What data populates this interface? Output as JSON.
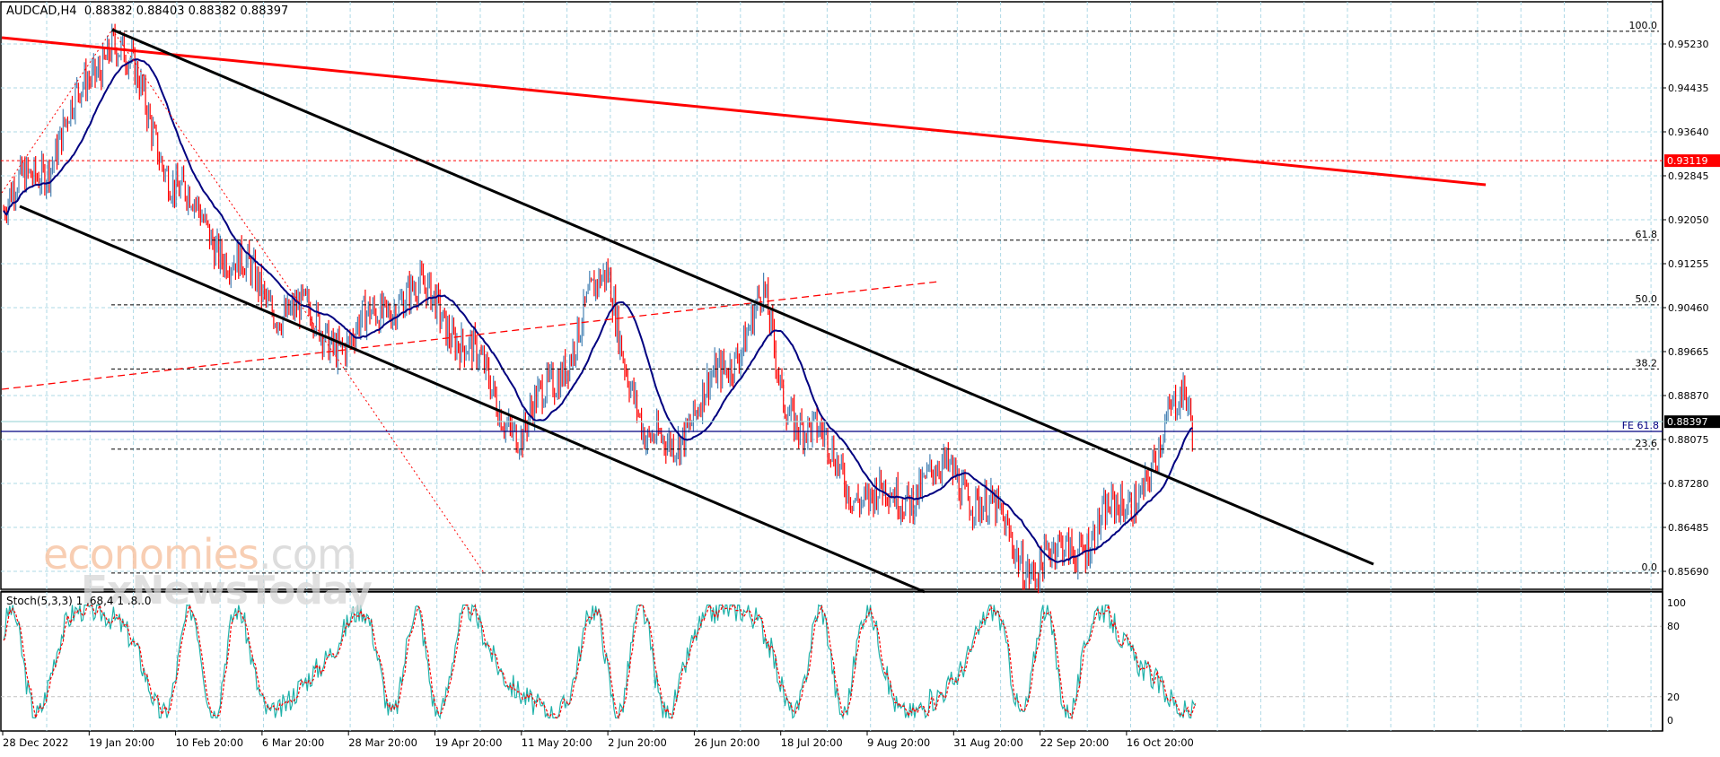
{
  "header": {
    "symbol": "AUDCAD",
    "timeframe": "H4",
    "title": "AUDCAD,H4  0.88382 0.88403 0.88382 0.88397",
    "open": "0.88382",
    "high": "0.88403",
    "low": "0.88382",
    "close": "0.88397"
  },
  "watermark": {
    "line1_main": "economies",
    "line1_suffix": ".com",
    "line2": "FxNewsToday"
  },
  "indicator": {
    "label": "Stoch(5,3,3) 1 .68,4 1 .8..0",
    "levels": [
      "100",
      "80",
      "20",
      "0"
    ]
  },
  "colors": {
    "bull_candle": "#4682b4",
    "bear_candle": "#ff0000",
    "moving_average": "#000080",
    "channel": "#000000",
    "trendline_red": "#ff0000",
    "grid": "#add8e6",
    "stoch_main": "#20b2aa",
    "stoch_signal": "#ff0000",
    "current_price_bg": "#000000",
    "marker_price_bg": "#ff0000"
  },
  "price_axis": {
    "labels": [
      "0.95230",
      "0.94435",
      "0.93640",
      "0.92845",
      "0.92050",
      "0.91255",
      "0.90460",
      "0.89665",
      "0.88870",
      "0.88075",
      "0.87280",
      "0.86485",
      "0.85690"
    ],
    "current_price": "0.88397",
    "marker_price": "0.93119"
  },
  "time_axis": {
    "labels": [
      "28 Dec 2022",
      "19 Jan 20:00",
      "10 Feb 20:00",
      "6 Mar 20:00",
      "28 Mar 20:00",
      "19 Apr 20:00",
      "11 May 20:00",
      "2 Jun 20:00",
      "26 Jun 20:00",
      "18 Jul 20:00",
      "9 Aug 20:00",
      "31 Aug 20:00",
      "22 Sep 20:00",
      "16 Oct 20:00"
    ]
  },
  "fibonacci": {
    "levels": [
      {
        "label": "100.0",
        "price": 0.9546
      },
      {
        "label": "61.8",
        "price": 0.9168
      },
      {
        "label": "50.0",
        "price": 0.9051
      },
      {
        "label": "38.2",
        "price": 0.8935
      },
      {
        "label": "23.6",
        "price": 0.879
      },
      {
        "label": "0.0",
        "price": 0.8566
      }
    ],
    "expansion_label": "FE 61.8",
    "expansion_price": 0.8826
  },
  "chart_data": {
    "type": "candlestick",
    "title": "AUDCAD,H4",
    "xlabel": "",
    "ylabel": "",
    "ylim": [
      0.855,
      0.956
    ],
    "x_tick_labels": [
      "28 Dec 2022",
      "19 Jan 20:00",
      "10 Feb 20:00",
      "6 Mar 20:00",
      "28 Mar 20:00",
      "19 Apr 20:00",
      "11 May 20:00",
      "2 Jun 20:00",
      "26 Jun 20:00",
      "18 Jul 20:00",
      "9 Aug 20:00",
      "31 Aug 20:00",
      "22 Sep 20:00",
      "16 Oct 20:00"
    ],
    "y_tick_labels": [
      "0.95230",
      "0.94435",
      "0.93640",
      "0.92845",
      "0.92050",
      "0.91255",
      "0.90460",
      "0.89665",
      "0.88870",
      "0.88075",
      "0.87280",
      "0.86485",
      "0.85690"
    ],
    "grid": true,
    "approx_close_path": {
      "dates": [
        "28 Dec 2022",
        "10 Jan",
        "19 Jan 20:00",
        "25 Jan",
        "10 Feb 20:00",
        "6 Mar 20:00",
        "28 Mar 20:00",
        "10 Apr",
        "19 Apr 20:00",
        "11 May 20:00",
        "2 Jun 20:00",
        "12 Jun",
        "26 Jun 20:00",
        "3 Jul",
        "18 Jul 20:00",
        "9 Aug 20:00",
        "31 Aug 20:00",
        "22 Sep 20:00",
        "16 Oct 20:00",
        "25 Oct",
        "30 Oct",
        "current"
      ],
      "values": [
        0.922,
        0.933,
        0.954,
        0.942,
        0.926,
        0.907,
        0.898,
        0.907,
        0.906,
        0.881,
        0.911,
        0.878,
        0.885,
        0.906,
        0.889,
        0.869,
        0.875,
        0.857,
        0.868,
        0.878,
        0.89,
        0.88397
      ]
    },
    "moving_average": {
      "name": "MA",
      "approx_values_at_ticks": [
        0.921,
        0.938,
        0.928,
        0.915,
        0.905,
        0.906,
        0.898,
        0.9,
        0.886,
        0.892,
        0.878,
        0.873,
        0.87,
        0.873
      ]
    },
    "stochastic": {
      "name": "Stoch(5,3,3)",
      "range": [
        0,
        100
      ],
      "levels": [
        20,
        80
      ],
      "last_values_approx": {
        "main": 18,
        "signal": 21
      }
    },
    "annotations": [
      {
        "type": "horizontal_line",
        "price": 0.93119,
        "style": "red dashed",
        "label": "0.93119"
      },
      {
        "type": "trendline",
        "style": "red thick",
        "from": [
          "28 Dec 2022",
          0.9515
        ],
        "to": [
          "~10 Nov",
          0.9285
        ]
      },
      {
        "type": "trendline",
        "style": "red dashed",
        "from": [
          "28 Dec 2022",
          0.897
        ],
        "to": [
          "~15 Aug",
          0.909
        ]
      },
      {
        "type": "channel_upper",
        "style": "black thick",
        "from": [
          "19 Jan 20:00",
          0.9546
        ],
        "to": [
          "~8 Nov",
          0.859
        ]
      },
      {
        "type": "channel_lower",
        "style": "black thick",
        "from": [
          "28 Dec 2022",
          0.924
        ],
        "to": [
          "~20 Aug",
          0.855
        ]
      },
      {
        "type": "fibonacci_retracement",
        "levels": {
          "100.0": 0.9546,
          "61.8": 0.9168,
          "50.0": 0.9051,
          "38.2": 0.8935,
          "23.6": 0.879,
          "0.0": 0.8566
        }
      },
      {
        "type": "fibonacci_expansion",
        "label": "FE 61.8",
        "price": 0.8826
      }
    ],
    "current_price": 0.88397
  }
}
